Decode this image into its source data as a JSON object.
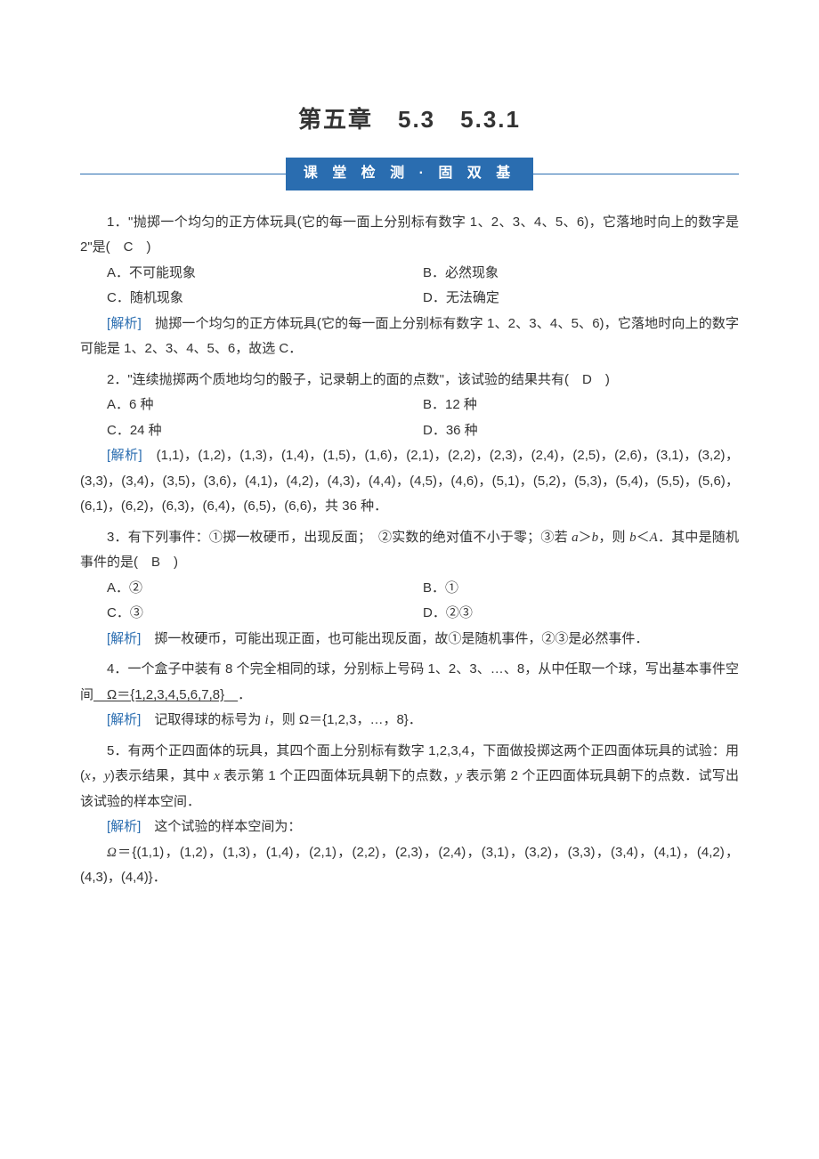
{
  "page": {
    "background_color": "#ffffff",
    "text_color": "#333333",
    "accent_color": "#2a6db0",
    "font_size_body": 15,
    "font_size_title": 26,
    "font_size_banner": 16
  },
  "header": {
    "chapter_title": "第五章　5.3　5.3.1",
    "banner_text": "课 堂 检 测 · 固 双 基"
  },
  "q1": {
    "text": "1．\"抛掷一个均匀的正方体玩具(它的每一面上分别标有数字 1、2、3、4、5、6)，它落地时向上的数字是 2\"是(　C　)",
    "opt_a": "A．不可能现象",
    "opt_b": "B．必然现象",
    "opt_c": "C．随机现象",
    "opt_d": "D．无法确定",
    "analysis_label": "[解析]",
    "analysis_text": "　抛掷一个均匀的正方体玩具(它的每一面上分别标有数字 1、2、3、4、5、6)，它落地时向上的数字可能是 1、2、3、4、5、6，故选 C．"
  },
  "q2": {
    "text": "2．\"连续抛掷两个质地均匀的骰子，记录朝上的面的点数\"，该试验的结果共有(　D　)",
    "opt_a": "A．6 种",
    "opt_b": "B．12 种",
    "opt_c": "C．24 种",
    "opt_d": "D．36 种",
    "analysis_label": "[解析]",
    "analysis_text": "　(1,1)，(1,2)，(1,3)，(1,4)，(1,5)，(1,6)，(2,1)，(2,2)，(2,3)，(2,4)，(2,5)，(2,6)，(3,1)，(3,2)，(3,3)，(3,4)，(3,5)，(3,6)，(4,1)，(4,2)，(4,3)，(4,4)，(4,5)，(4,6)，(5,1)，(5,2)，(5,3)，(5,4)，(5,5)，(5,6)，(6,1)，(6,2)，(6,3)，(6,4)，(6,5)，(6,6)，共 36 种．"
  },
  "q3": {
    "text_part1": "3．有下列事件：①掷一枚硬币，出现反面；　②实数的绝对值不小于零；③若 ",
    "text_part2": "a",
    "text_part3": "＞",
    "text_part4": "b",
    "text_part5": "，则 ",
    "text_part6": "b",
    "text_part7": "＜",
    "text_part8": "A",
    "text_part9": "．其中是随机事件的是(　B　)",
    "opt_a": "A．②",
    "opt_b": "B．①",
    "opt_c": "C．③",
    "opt_d": "D．②③",
    "analysis_label": "[解析]",
    "analysis_text": "　掷一枚硬币，可能出现正面，也可能出现反面，故①是随机事件，②③是必然事件．"
  },
  "q4": {
    "text_part1": "4．一个盒子中装有 8 个完全相同的球，分别标上号码 1、2、3、…、8，从中任取一个球，写出基本事件空间",
    "answer": "　Ω＝{1,2,3,4,5,6,7,8}　",
    "text_part2": "．",
    "analysis_label": "[解析]",
    "analysis_text1": "　记取得球的标号为 ",
    "analysis_i": "i",
    "analysis_text2": "，则 Ω＝{1,2,3，…，8}．"
  },
  "q5": {
    "text_part1": "5．有两个正四面体的玩具，其四个面上分别标有数字 1,2,3,4，下面做投掷这两个正四面体玩具的试验：用(",
    "x1": "x",
    "comma1": "，",
    "y1": "y",
    "text_part2": ")表示结果，其中 ",
    "x2": "x",
    "text_part3": " 表示第 1 个正四面体玩具朝下的点数，",
    "y2": "y",
    "text_part4": " 表示第 2 个正四面体玩具朝下的点数．试写出该试验的样本空间．",
    "analysis_label": "[解析]",
    "analysis_text1": "　这个试验的样本空间为：",
    "omega": "Ω",
    "analysis_text2": "＝{(1,1)，(1,2)，(1,3)，(1,4)，(2,1)，(2,2)，(2,3)，(2,4)，(3,1)，(3,2)，(3,3)，(3,4)，(4,1)，(4,2)，(4,3)，(4,4)}．"
  }
}
